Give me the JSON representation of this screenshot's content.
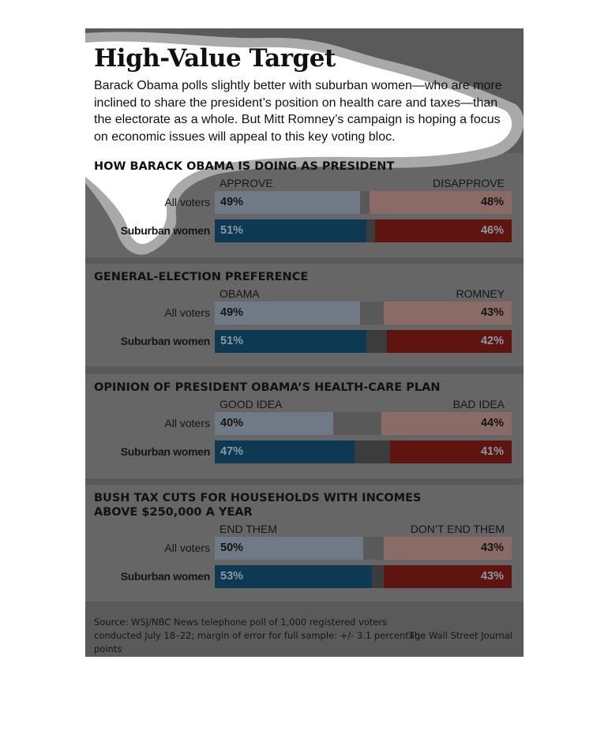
{
  "title": "High-Value Target",
  "intro": "Barack Obama polls slightly better with suburban women—who are more inclined to share the president’s position on health care and taxes—than the electorate as a whole. But Mitt Romney’s campaign is hoping a focus on economic issues will appeal to this key voting bloc.",
  "colors": {
    "all_left": "#707a87",
    "all_mid": "#595959",
    "all_right": "#8a6b66",
    "sub_left": "#0d3a52",
    "sub_mid": "#3c3c3c",
    "sub_right": "#601410",
    "text_dark": "#141414",
    "text_light": "#8e99a6"
  },
  "chart_data": [
    {
      "type": "bar",
      "title": "HOW BARACK OBAMA IS DOING AS PRESIDENT",
      "left_label": "APPROVE",
      "right_label": "DISAPPROVE",
      "rows": [
        {
          "label": "All voters",
          "left": 49,
          "right": 48,
          "left_text": "49%",
          "right_text": "48%"
        },
        {
          "label": "Suburban women",
          "left": 51,
          "right": 46,
          "left_text": "51%",
          "right_text": "46%"
        }
      ]
    },
    {
      "type": "bar",
      "title": "GENERAL-ELECTION PREFERENCE",
      "left_label": "OBAMA",
      "right_label": "ROMNEY",
      "rows": [
        {
          "label": "All voters",
          "left": 49,
          "right": 43,
          "left_text": "49%",
          "right_text": "43%"
        },
        {
          "label": "Suburban women",
          "left": 51,
          "right": 42,
          "left_text": "51%",
          "right_text": "42%"
        }
      ]
    },
    {
      "type": "bar",
      "title": "OPINION OF PRESIDENT OBAMA’S HEALTH-CARE PLAN",
      "left_label": "GOOD IDEA",
      "right_label": "BAD IDEA",
      "rows": [
        {
          "label": "All voters",
          "left": 40,
          "right": 44,
          "left_text": "40%",
          "right_text": "44%"
        },
        {
          "label": "Suburban women",
          "left": 47,
          "right": 41,
          "left_text": "47%",
          "right_text": "41%"
        }
      ]
    },
    {
      "type": "bar",
      "title": "BUSH TAX CUTS FOR HOUSEHOLDS WITH INCOMES ABOVE $250,000 A YEAR",
      "left_label": "END THEM",
      "right_label": "DON’T END THEM",
      "rows": [
        {
          "label": "All voters",
          "left": 50,
          "right": 43,
          "left_text": "50%",
          "right_text": "43%"
        },
        {
          "label": "Suburban women",
          "left": 53,
          "right": 43,
          "left_text": "53%",
          "right_text": "43%"
        }
      ]
    }
  ],
  "source": "Source: WSJ/NBC News telephone poll of 1,000 registered voters conducted July 18–22; margin of error for full sample: +/- 3.1 percentage points",
  "credit": "The Wall Street Journal"
}
